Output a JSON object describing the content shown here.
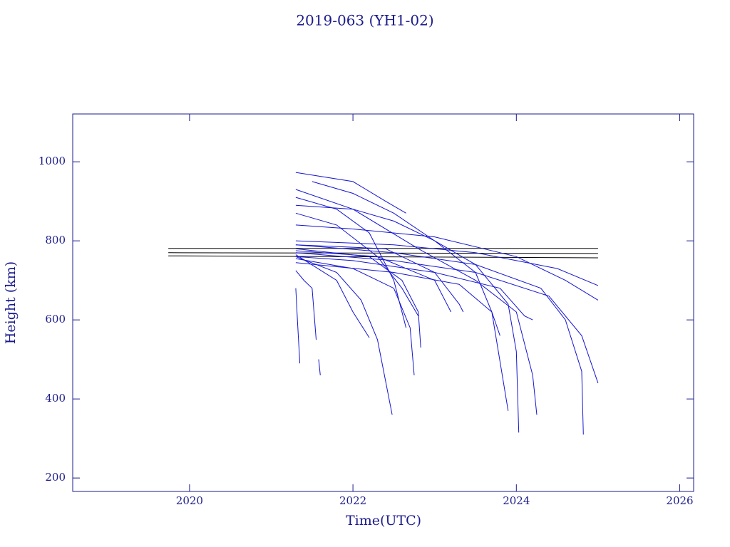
{
  "chart_data": {
    "type": "line",
    "title": "2019-063 (YH1-02)",
    "x_label": "Time(UTC)",
    "y_label": "Height (km)",
    "xlim": [
      2018.57,
      2026.17
    ],
    "ylim": [
      166,
      1121
    ],
    "xticks": [
      2020,
      2022,
      2024,
      2026
    ],
    "yticks": [
      200,
      400,
      600,
      800,
      1000
    ],
    "series": [
      {
        "color": "#000000",
        "x": [
          2019.74,
          2025.0
        ],
        "values": [
          781,
          781
        ]
      },
      {
        "color": "#000000",
        "x": [
          2019.74,
          2025.0
        ],
        "values": [
          770,
          768
        ]
      },
      {
        "color": "#000000",
        "x": [
          2019.74,
          2025.0
        ],
        "values": [
          762,
          757
        ]
      },
      {
        "color": "#1414d2",
        "x": [
          2021.3,
          2022.0,
          2022.4,
          2022.65
        ],
        "values": [
          973,
          950,
          900,
          870
        ]
      },
      {
        "color": "#1414d2",
        "x": [
          2021.5,
          2022.0,
          2022.5,
          2023.0,
          2023.5,
          2023.7,
          2023.9
        ],
        "values": [
          950,
          920,
          870,
          800,
          720,
          620,
          370
        ]
      },
      {
        "color": "#1414d2",
        "x": [
          2021.3,
          2022.0,
          2022.8,
          2023.5,
          2024.0,
          2024.2,
          2024.25
        ],
        "values": [
          930,
          880,
          780,
          700,
          620,
          460,
          360
        ]
      },
      {
        "color": "#1414d2",
        "x": [
          2021.3,
          2022.0,
          2022.5,
          2023.0,
          2023.5,
          2023.9,
          2024.0,
          2024.03
        ],
        "values": [
          890,
          880,
          850,
          800,
          740,
          640,
          520,
          315
        ]
      },
      {
        "color": "#1414d2",
        "x": [
          2021.3,
          2022.0,
          2023.0,
          2024.0,
          2024.6,
          2025.0
        ],
        "values": [
          840,
          830,
          810,
          760,
          700,
          650
        ]
      },
      {
        "color": "#1414d2",
        "x": [
          2021.3,
          2022.5,
          2023.5,
          2024.5,
          2025.0
        ],
        "values": [
          800,
          790,
          770,
          730,
          687
        ]
      },
      {
        "color": "#1414d2",
        "x": [
          2021.3,
          2022.5,
          2023.5,
          2024.3,
          2024.6,
          2024.8,
          2024.82
        ],
        "values": [
          790,
          770,
          740,
          680,
          600,
          470,
          310
        ]
      },
      {
        "color": "#1414d2",
        "x": [
          2021.3,
          2022.5,
          2023.5,
          2024.4,
          2024.8,
          2025.0
        ],
        "values": [
          770,
          750,
          720,
          660,
          560,
          440
        ]
      },
      {
        "color": "#1414d2",
        "x": [
          2021.3,
          2021.8,
          2022.1,
          2022.3,
          2022.48
        ],
        "values": [
          760,
          720,
          650,
          550,
          360
        ]
      },
      {
        "color": "#1414d2",
        "x": [
          2021.3,
          2021.8,
          2022.0,
          2022.2
        ],
        "values": [
          765,
          700,
          620,
          555
        ]
      },
      {
        "color": "#1414d2",
        "x": [
          2021.3,
          2022.0,
          2022.5,
          2022.7,
          2022.75
        ],
        "values": [
          755,
          730,
          680,
          580,
          460
        ]
      },
      {
        "color": "#1414d2",
        "x": [
          2021.3,
          2022.2,
          2022.6,
          2022.8,
          2022.83
        ],
        "values": [
          780,
          760,
          700,
          620,
          530
        ]
      },
      {
        "color": "#1414d2",
        "x": [
          2021.3,
          2022.3,
          2023.0,
          2023.2
        ],
        "values": [
          775,
          760,
          700,
          620
        ]
      },
      {
        "color": "#1414d2",
        "x": [
          2021.3,
          2022.4,
          2023.0,
          2023.3,
          2023.35
        ],
        "values": [
          790,
          780,
          720,
          640,
          620
        ]
      },
      {
        "color": "#1414d2",
        "x": [
          2021.3,
          2021.8,
          2022.3,
          2022.6,
          2022.8
        ],
        "values": [
          870,
          840,
          760,
          680,
          610
        ]
      },
      {
        "color": "#1414d2",
        "x": [
          2021.3,
          2021.8,
          2022.2,
          2022.5,
          2022.65
        ],
        "values": [
          910,
          880,
          820,
          700,
          580
        ]
      },
      {
        "color": "#1414d2",
        "x": [
          2021.3,
          2021.32,
          2021.35
        ],
        "values": [
          680,
          600,
          490
        ]
      },
      {
        "color": "#1414d2",
        "x": [
          2021.3,
          2021.4,
          2021.5,
          2021.55
        ],
        "values": [
          725,
          700,
          680,
          550
        ]
      },
      {
        "color": "#1414d2",
        "x": [
          2021.58,
          2021.6
        ],
        "values": [
          500,
          460
        ]
      },
      {
        "color": "#1414d2",
        "x": [
          2021.3,
          2022.0,
          2023.0,
          2023.8,
          2024.1,
          2024.2
        ],
        "values": [
          760,
          750,
          720,
          680,
          610,
          600
        ]
      },
      {
        "color": "#1414d2",
        "x": [
          2021.3,
          2022.5,
          2023.3,
          2023.7,
          2023.8
        ],
        "values": [
          745,
          720,
          690,
          620,
          560
        ]
      }
    ]
  }
}
